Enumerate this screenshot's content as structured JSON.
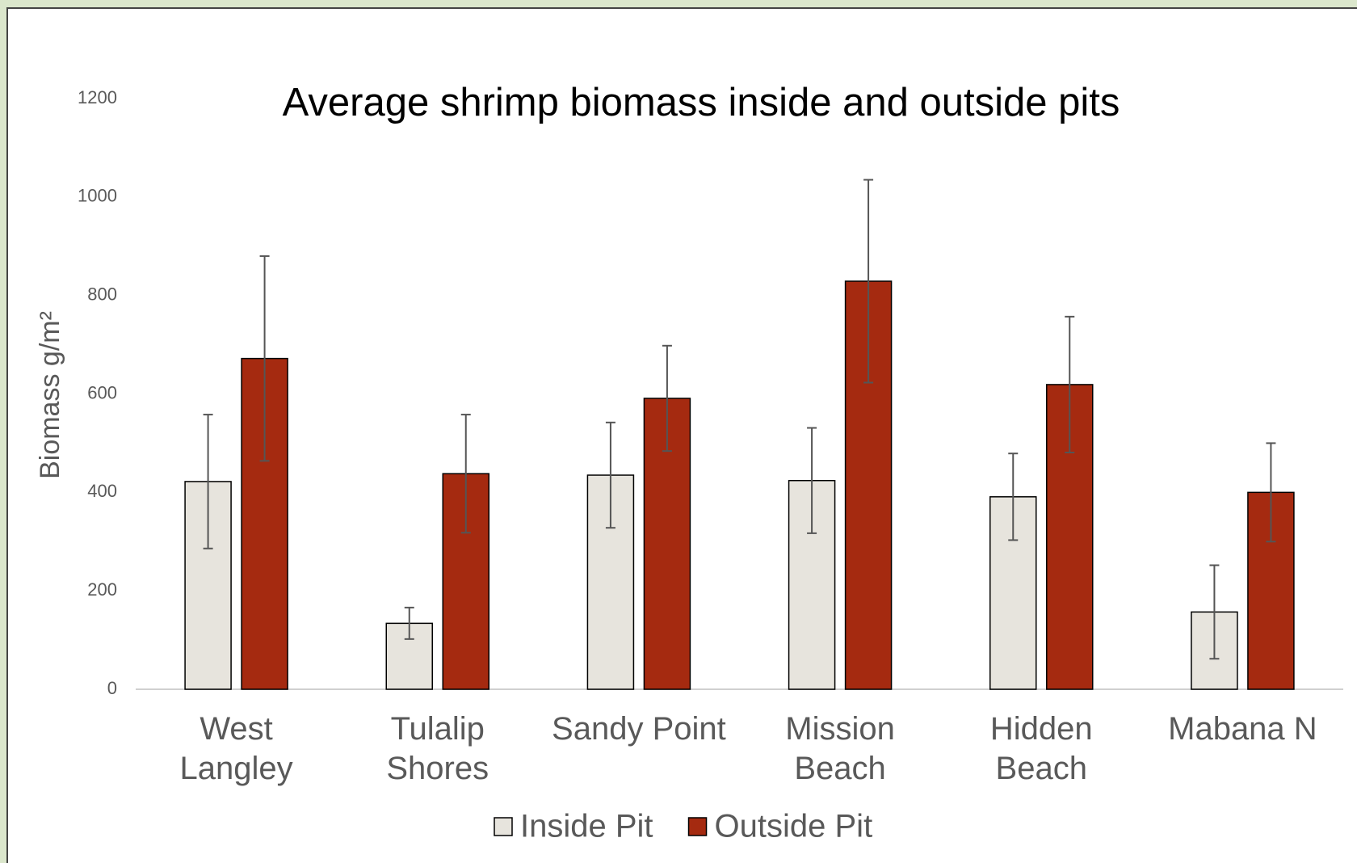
{
  "chart_data": {
    "type": "bar",
    "title": "Average shrimp biomass inside and outside pits",
    "y_label": "Biomass g/m²",
    "categories": [
      "West\nLangley",
      "Tulalip\nShores",
      "Sandy Point",
      "Mission\nBeach",
      "Hidden\nBeach",
      "Mabana N"
    ],
    "series": [
      {
        "name": "Inside Pit",
        "color": "#e7e4dd",
        "values": [
          422,
          134,
          435,
          424,
          391,
          157
        ],
        "errors": [
          136,
          32,
          107,
          107,
          88,
          95
        ]
      },
      {
        "name": "Outside Pit",
        "color": "#a52a10",
        "values": [
          672,
          438,
          591,
          829,
          619,
          400
        ],
        "errors": [
          208,
          120,
          107,
          206,
          138,
          100
        ]
      }
    ],
    "ylim": [
      0,
      1200
    ],
    "yticks": [
      0,
      200,
      400,
      600,
      800,
      1000,
      1200
    ],
    "legend": "bottom"
  }
}
